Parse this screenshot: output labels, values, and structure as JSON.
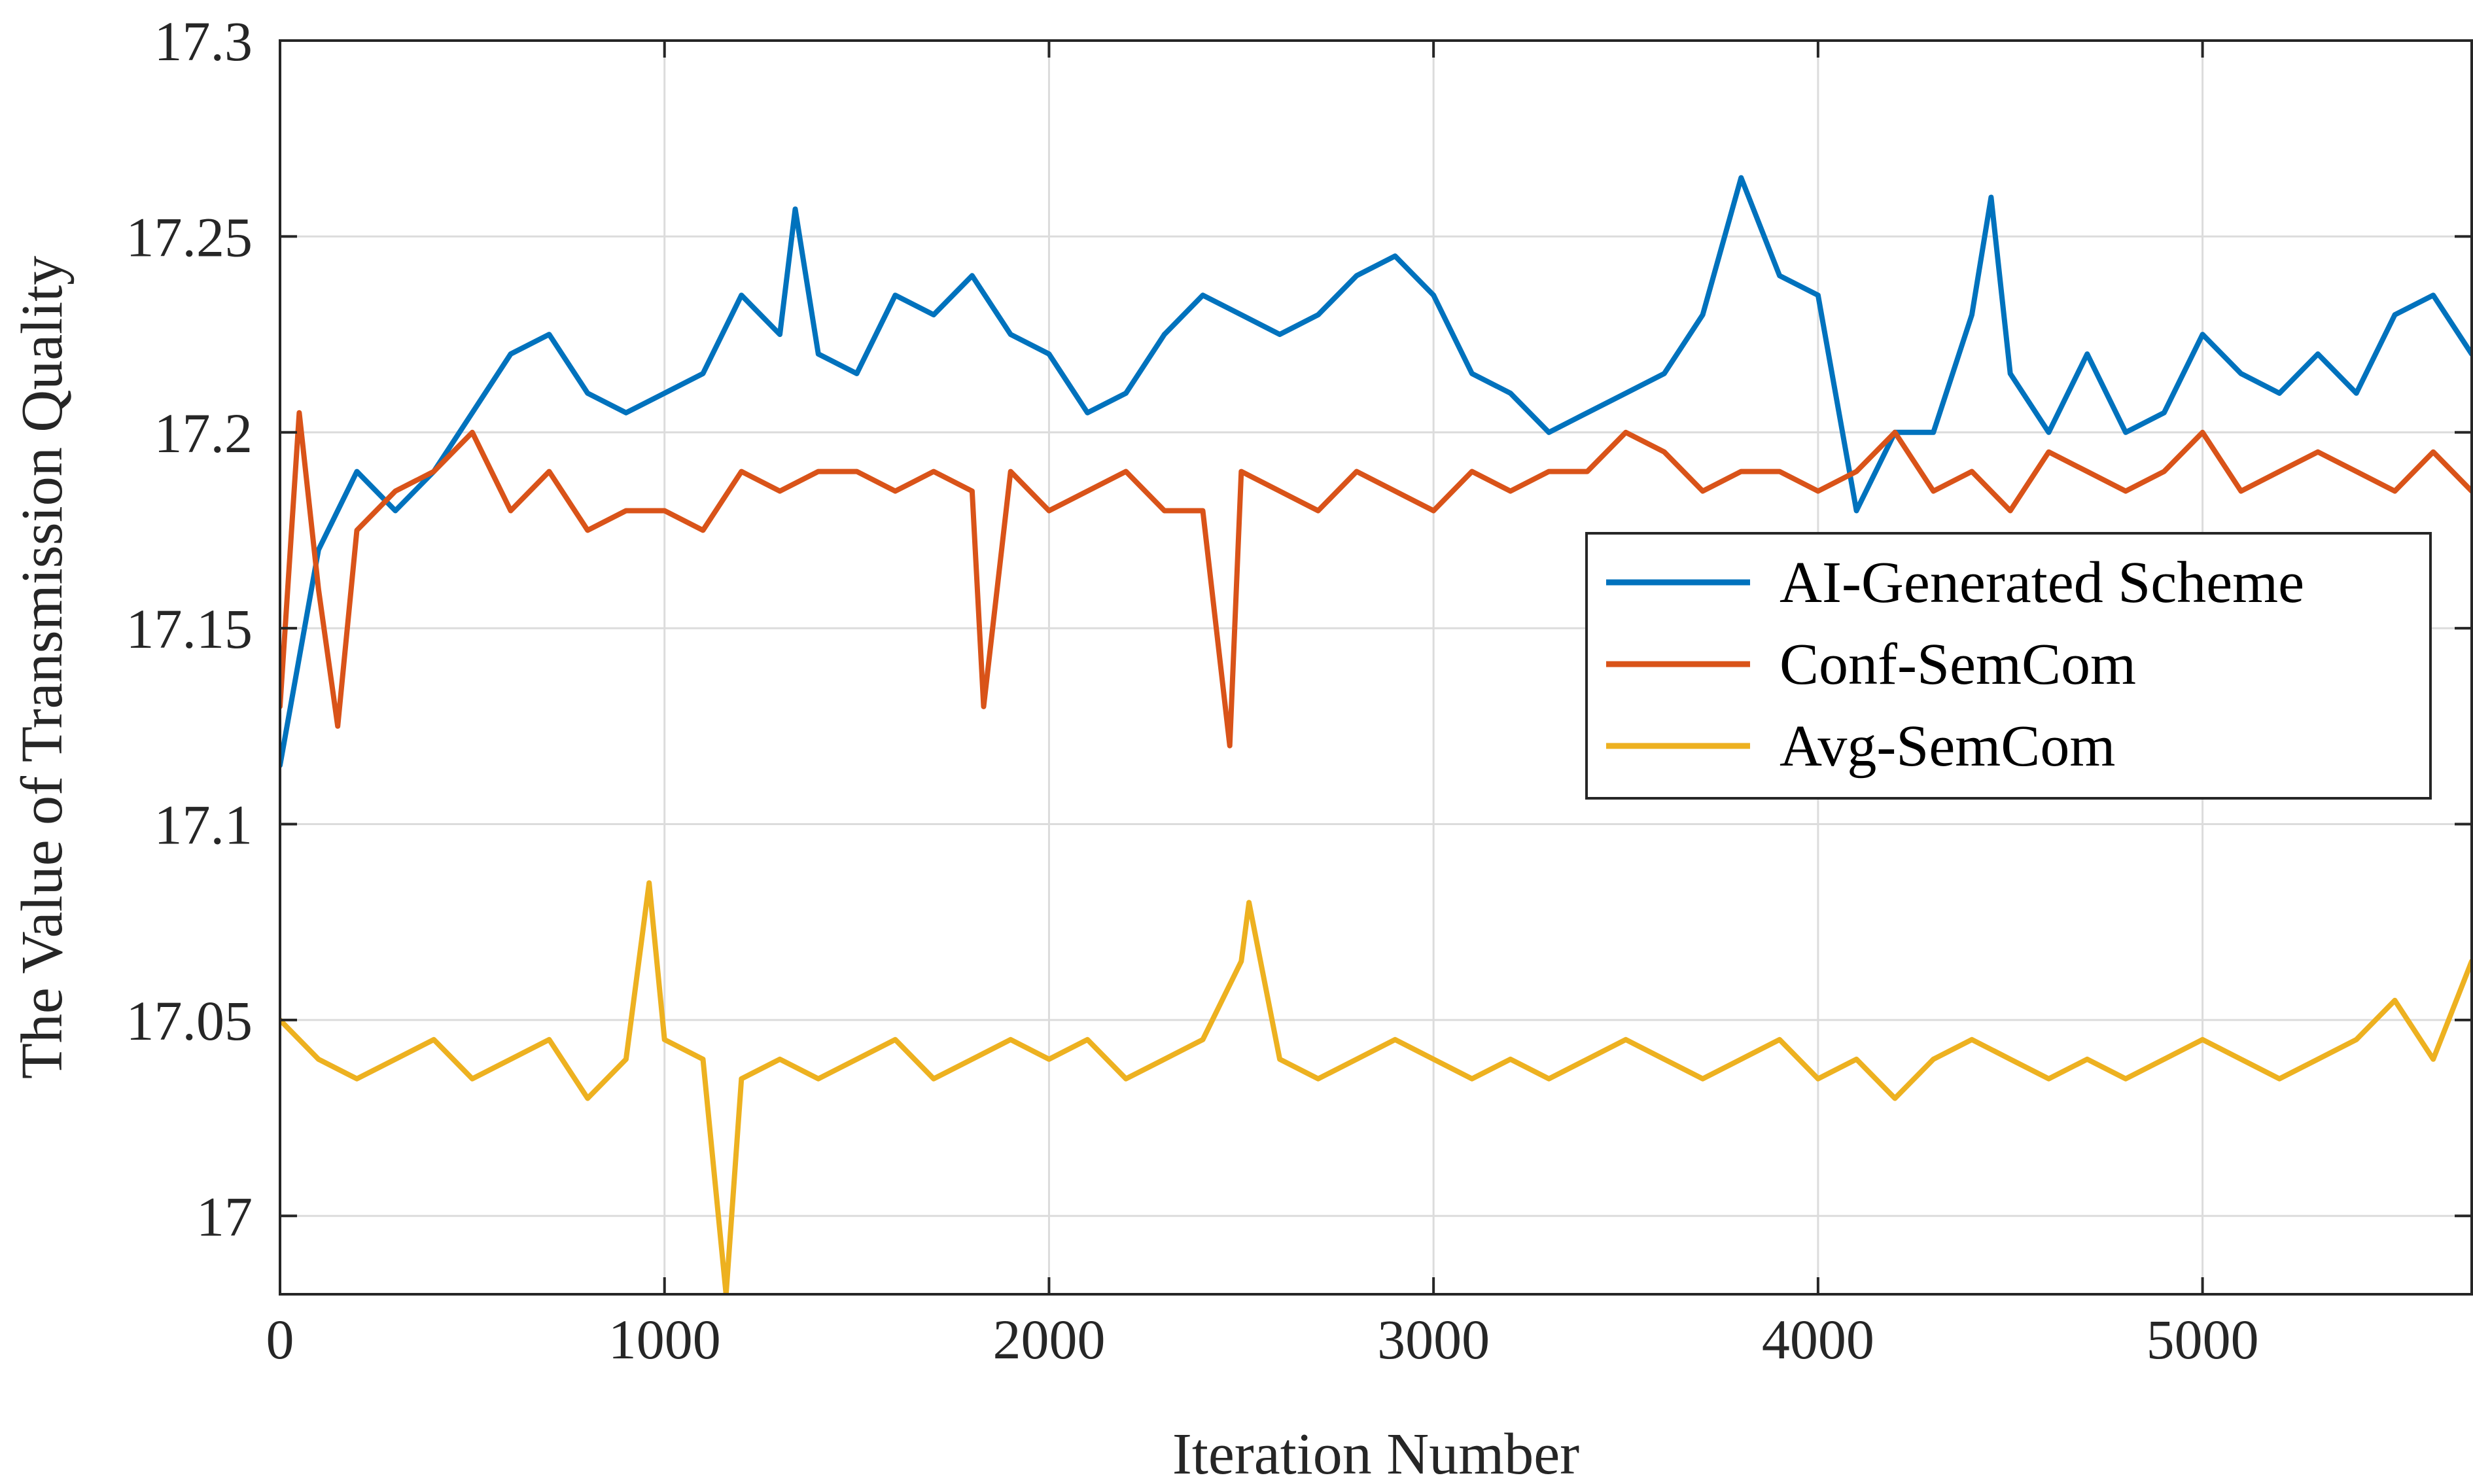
{
  "chart_data": {
    "type": "line",
    "title": "",
    "xlabel": "Iteration Number",
    "ylabel": "The Value of Transmission Quality",
    "xlim": [
      0,
      5700
    ],
    "ylim": [
      16.98,
      17.3
    ],
    "grid": true,
    "legend_position": "center-right",
    "x_ticks": [
      0,
      1000,
      2000,
      3000,
      4000,
      5000
    ],
    "x_tick_labels": [
      "0",
      "1000",
      "2000",
      "3000",
      "4000",
      "5000"
    ],
    "y_ticks": [
      17,
      17.05,
      17.1,
      17.15,
      17.2,
      17.25,
      17.3
    ],
    "y_tick_labels": [
      "17",
      "17.05",
      "17.1",
      "17.15",
      "17.2",
      "17.25",
      "17.3"
    ],
    "series": [
      {
        "name": "AI-Generated Scheme",
        "color": "#0072bd",
        "x": [
          0,
          100,
          200,
          300,
          400,
          500,
          600,
          700,
          800,
          900,
          1000,
          1100,
          1200,
          1300,
          1340,
          1400,
          1500,
          1600,
          1700,
          1800,
          1900,
          2000,
          2100,
          2200,
          2300,
          2400,
          2500,
          2600,
          2700,
          2800,
          2900,
          3000,
          3100,
          3200,
          3300,
          3400,
          3500,
          3600,
          3700,
          3800,
          3900,
          4000,
          4100,
          4200,
          4300,
          4400,
          4450,
          4500,
          4600,
          4700,
          4800,
          4900,
          5000,
          5100,
          5200,
          5300,
          5400,
          5500,
          5600,
          5700
        ],
        "y": [
          17.115,
          17.17,
          17.19,
          17.18,
          17.19,
          17.205,
          17.22,
          17.225,
          17.21,
          17.205,
          17.21,
          17.215,
          17.235,
          17.225,
          17.257,
          17.22,
          17.215,
          17.235,
          17.23,
          17.24,
          17.225,
          17.22,
          17.205,
          17.21,
          17.225,
          17.235,
          17.23,
          17.225,
          17.23,
          17.24,
          17.245,
          17.235,
          17.215,
          17.21,
          17.2,
          17.205,
          17.21,
          17.215,
          17.23,
          17.265,
          17.24,
          17.235,
          17.18,
          17.2,
          17.2,
          17.23,
          17.26,
          17.215,
          17.2,
          17.22,
          17.2,
          17.205,
          17.225,
          17.215,
          17.21,
          17.22,
          17.21,
          17.23,
          17.235,
          17.22
        ]
      },
      {
        "name": "Conf-SemCom",
        "color": "#d95319",
        "x": [
          0,
          50,
          100,
          150,
          200,
          300,
          400,
          500,
          600,
          700,
          800,
          900,
          1000,
          1100,
          1200,
          1300,
          1400,
          1500,
          1600,
          1700,
          1800,
          1830,
          1900,
          2000,
          2100,
          2200,
          2300,
          2400,
          2470,
          2500,
          2600,
          2700,
          2800,
          2900,
          3000,
          3100,
          3200,
          3300,
          3400,
          3500,
          3600,
          3700,
          3800,
          3900,
          4000,
          4100,
          4200,
          4300,
          4400,
          4500,
          4600,
          4700,
          4800,
          4900,
          5000,
          5100,
          5200,
          5300,
          5400,
          5500,
          5600,
          5700
        ],
        "y": [
          17.13,
          17.205,
          17.16,
          17.125,
          17.175,
          17.185,
          17.19,
          17.2,
          17.18,
          17.19,
          17.175,
          17.18,
          17.18,
          17.175,
          17.19,
          17.185,
          17.19,
          17.19,
          17.185,
          17.19,
          17.185,
          17.13,
          17.19,
          17.18,
          17.185,
          17.19,
          17.18,
          17.18,
          17.12,
          17.19,
          17.185,
          17.18,
          17.19,
          17.185,
          17.18,
          17.19,
          17.185,
          17.19,
          17.19,
          17.2,
          17.195,
          17.185,
          17.19,
          17.19,
          17.185,
          17.19,
          17.2,
          17.185,
          17.19,
          17.18,
          17.195,
          17.19,
          17.185,
          17.19,
          17.2,
          17.185,
          17.19,
          17.195,
          17.19,
          17.185,
          17.195,
          17.185
        ]
      },
      {
        "name": "Avg-SemCom",
        "color": "#edb120",
        "x": [
          0,
          100,
          200,
          300,
          400,
          500,
          600,
          700,
          800,
          900,
          960,
          1000,
          1100,
          1160,
          1200,
          1300,
          1400,
          1500,
          1600,
          1700,
          1800,
          1900,
          2000,
          2100,
          2200,
          2300,
          2400,
          2500,
          2520,
          2600,
          2700,
          2800,
          2900,
          3000,
          3100,
          3200,
          3300,
          3400,
          3500,
          3600,
          3700,
          3800,
          3900,
          4000,
          4100,
          4200,
          4300,
          4400,
          4500,
          4600,
          4700,
          4800,
          4900,
          5000,
          5100,
          5200,
          5300,
          5400,
          5500,
          5600,
          5700
        ],
        "y": [
          17.05,
          17.04,
          17.035,
          17.04,
          17.045,
          17.035,
          17.04,
          17.045,
          17.03,
          17.04,
          17.085,
          17.045,
          17.04,
          16.98,
          17.035,
          17.04,
          17.035,
          17.04,
          17.045,
          17.035,
          17.04,
          17.045,
          17.04,
          17.045,
          17.035,
          17.04,
          17.045,
          17.065,
          17.08,
          17.04,
          17.035,
          17.04,
          17.045,
          17.04,
          17.035,
          17.04,
          17.035,
          17.04,
          17.045,
          17.04,
          17.035,
          17.04,
          17.045,
          17.035,
          17.04,
          17.03,
          17.04,
          17.045,
          17.04,
          17.035,
          17.04,
          17.035,
          17.04,
          17.045,
          17.04,
          17.035,
          17.04,
          17.045,
          17.055,
          17.04,
          17.065
        ]
      }
    ]
  }
}
